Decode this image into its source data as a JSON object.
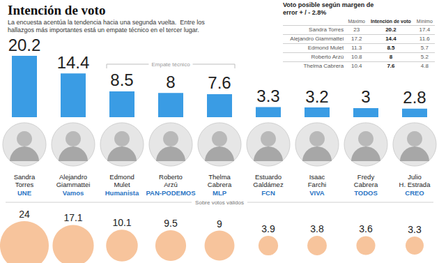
{
  "chart_data": [
    {
      "type": "bar",
      "title": "Intención de voto",
      "subtitle": "La encuesta acentúa la tendencia hacia una segunda vuelta.  Entre los hallazgos más importantes está un empate técnico en el tercer lugar.",
      "categories": [
        "Sandra Torres",
        "Alejandro Giammattei",
        "Edmond Mulet",
        "Roberto Arzú",
        "Thelma Cabrera",
        "Estuardo Galdámez",
        "Isaac Farchi",
        "Fredy Cabrera",
        "Julio H. Estrada"
      ],
      "parties": [
        "UNE",
        "Vamos",
        "Humanista",
        "PAN-PODEMOS",
        "MLP",
        "FCN",
        "VIVA",
        "TODOS",
        "CREO"
      ],
      "values": [
        20.2,
        14.4,
        8.5,
        8,
        7.6,
        3.3,
        3.2,
        3,
        2.8
      ],
      "color": "#3a9ce4",
      "ylim": [
        0,
        20.2
      ],
      "grid": false,
      "data_labels": true,
      "tick_labels": "x",
      "annotations": [
        {
          "text": "Empate técnico",
          "from": "Edmond Mulet",
          "to": "Thelma Cabrera"
        }
      ]
    },
    {
      "type": "scatter",
      "title": "Sobre votos válidos",
      "values": [
        24,
        17.1,
        10.1,
        9.5,
        9,
        3.9,
        3.8,
        3.6,
        3.3
      ],
      "color": "#f7c49c",
      "marker": "circle",
      "data_labels": true,
      "tick_labels": false
    }
  ],
  "table": {
    "title": "Voto posible según margen de error + / - 2.8%",
    "columns": [
      "Máximo",
      "Intención de voto",
      "Mínimo"
    ],
    "rows": [
      [
        "Sandra Torres",
        23,
        20.2,
        17.4
      ],
      [
        "Alejandro Giammattei",
        17.2,
        14.4,
        11.6
      ],
      [
        "Edmond Mulet",
        11.3,
        8.5,
        5.7
      ],
      [
        "Roberto Arzú",
        10.8,
        8,
        5.2
      ],
      [
        "Thelma Cabrera",
        10.4,
        7.6,
        4.8
      ]
    ]
  }
}
